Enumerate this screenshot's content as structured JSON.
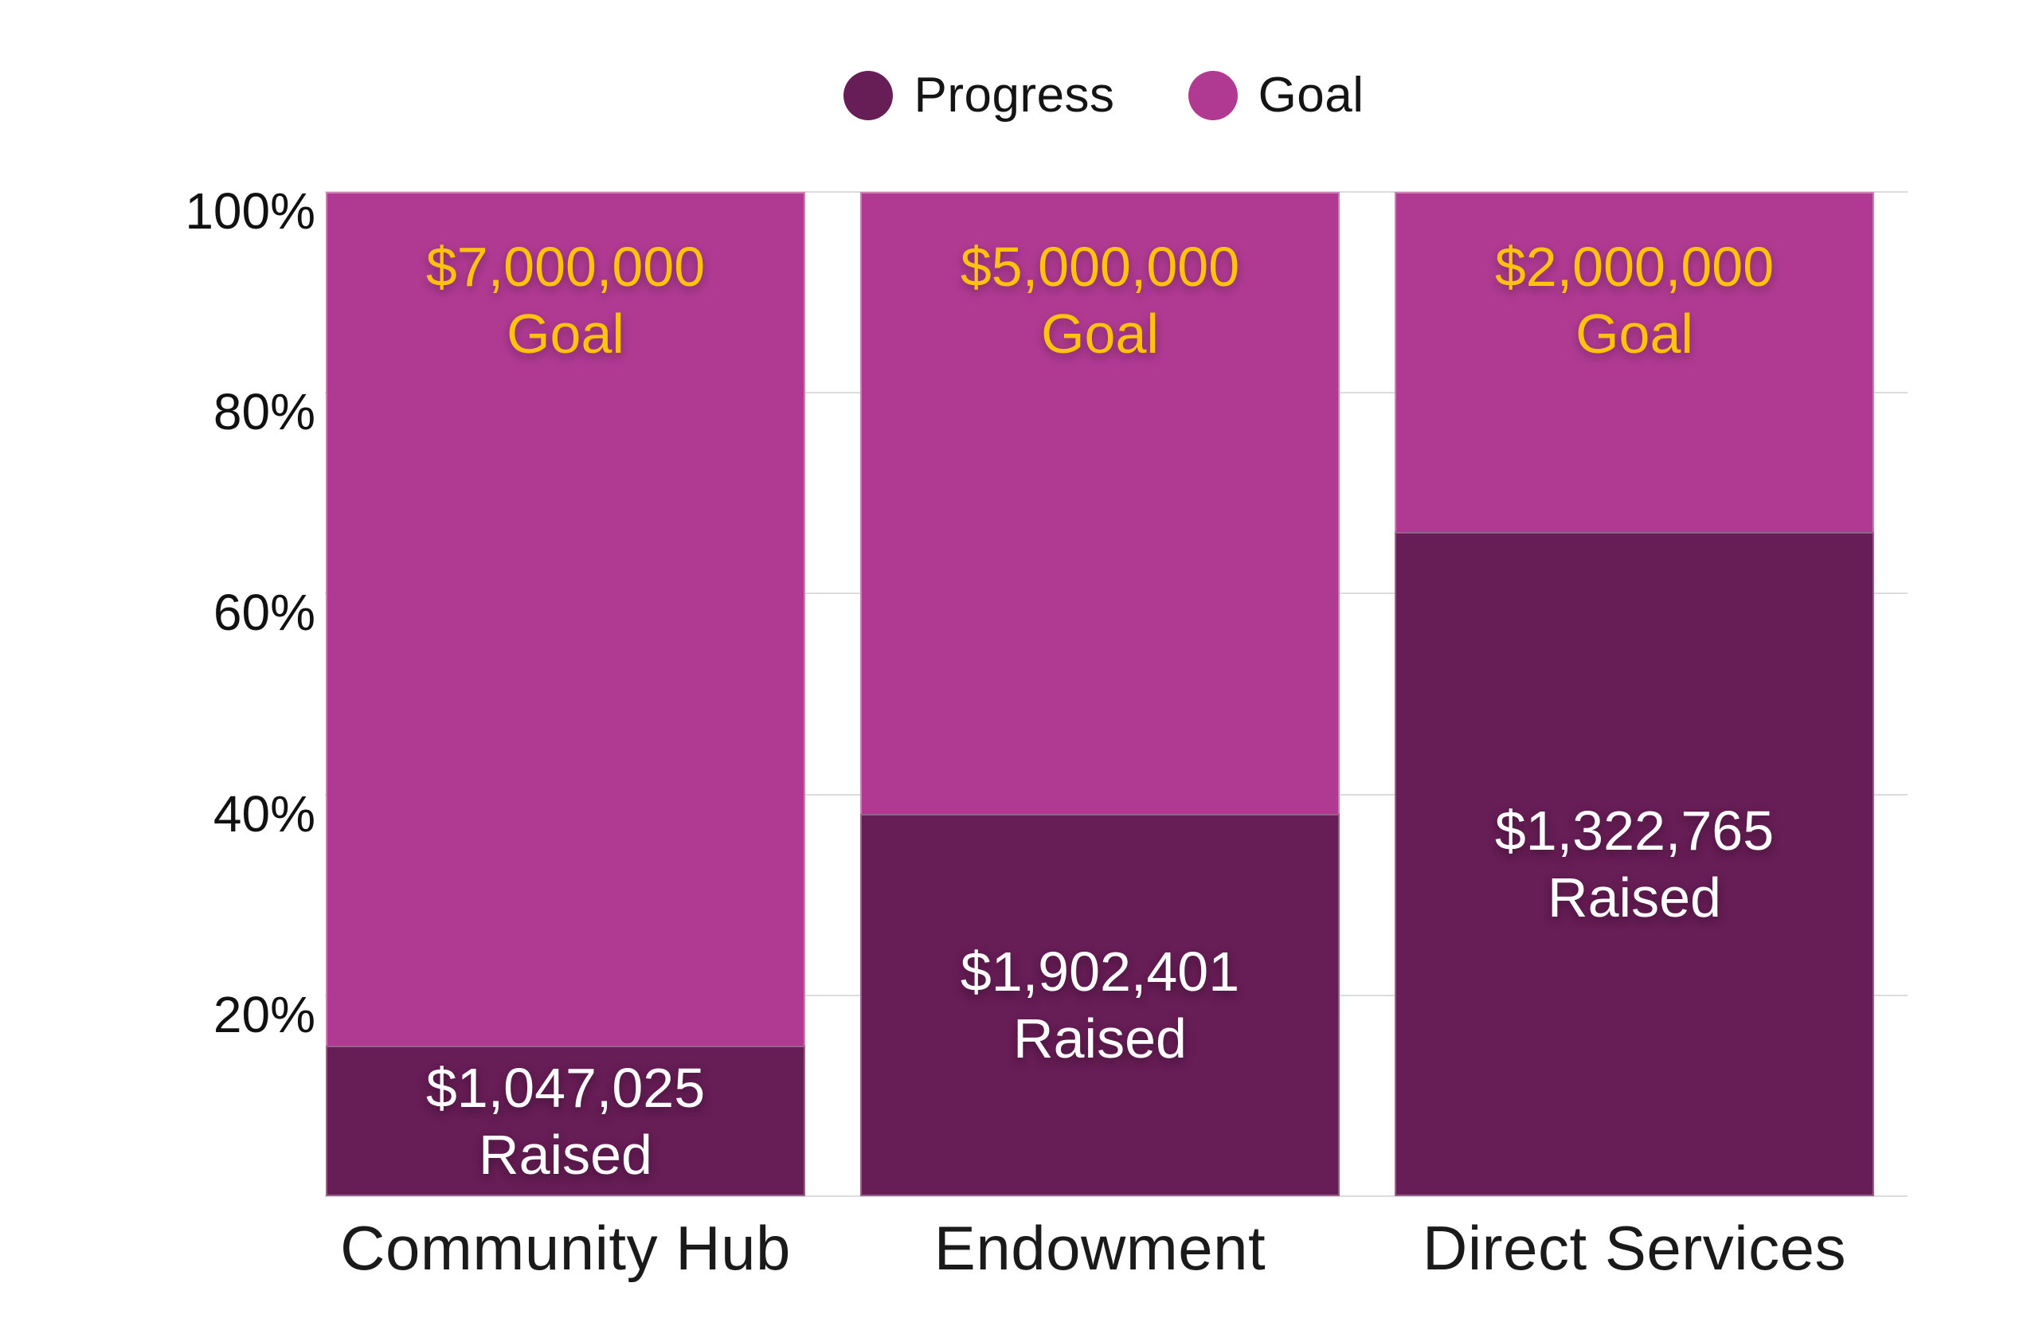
{
  "colors": {
    "progress": "#671D55",
    "goal": "#B03A92",
    "goal_text": "#FFC20D",
    "raised_text": "#FFFFFF",
    "gridline": "#DCDCDC",
    "axis_text": "#111111"
  },
  "legend": {
    "items": [
      {
        "label": "Progress",
        "color": "#671D55"
      },
      {
        "label": "Goal",
        "color": "#B03A92"
      }
    ]
  },
  "y_axis": {
    "ticks": [
      "100%",
      "80%",
      "60%",
      "40%",
      "20%"
    ]
  },
  "bars": [
    {
      "category": "Community Hub",
      "goal_amount": "$7,000,000",
      "goal_caption": "Goal",
      "raised_amount": "$1,047,025",
      "raised_caption": "Raised",
      "progress_pct": 14.96
    },
    {
      "category": "Endowment",
      "goal_amount": "$5,000,000",
      "goal_caption": "Goal",
      "raised_amount": "$1,902,401",
      "raised_caption": "Raised",
      "progress_pct": 38.05
    },
    {
      "category": "Direct Services",
      "goal_amount": "$2,000,000",
      "goal_caption": "Goal",
      "raised_amount": "$1,322,765",
      "raised_caption": "Raised",
      "progress_pct": 66.14
    }
  ],
  "chart_data": {
    "type": "bar",
    "stacked": true,
    "normalized_to_percent_of_goal": true,
    "categories": [
      "Community Hub",
      "Endowment",
      "Direct Services"
    ],
    "series": [
      {
        "name": "Progress",
        "values": [
          1047025,
          1902401,
          1322765
        ],
        "percent_of_goal": [
          14.96,
          38.05,
          66.14
        ],
        "color": "#671D55"
      },
      {
        "name": "Goal",
        "values": [
          7000000,
          5000000,
          2000000
        ],
        "percent_of_goal": [
          100,
          100,
          100
        ],
        "color": "#B03A92"
      }
    ],
    "title": "",
    "xlabel": "",
    "ylabel": "",
    "y_ticks": [
      "20%",
      "40%",
      "60%",
      "80%",
      "100%"
    ],
    "ylim": [
      0,
      100
    ],
    "grid": true,
    "legend_position": "top-center",
    "bar_value_labels": {
      "goal_labels": [
        "$7,000,000 Goal",
        "$5,000,000 Goal",
        "$2,000,000 Goal"
      ],
      "raised_labels": [
        "$1,047,025 Raised",
        "$1,902,401 Raised",
        "$1,322,765 Raised"
      ]
    }
  }
}
